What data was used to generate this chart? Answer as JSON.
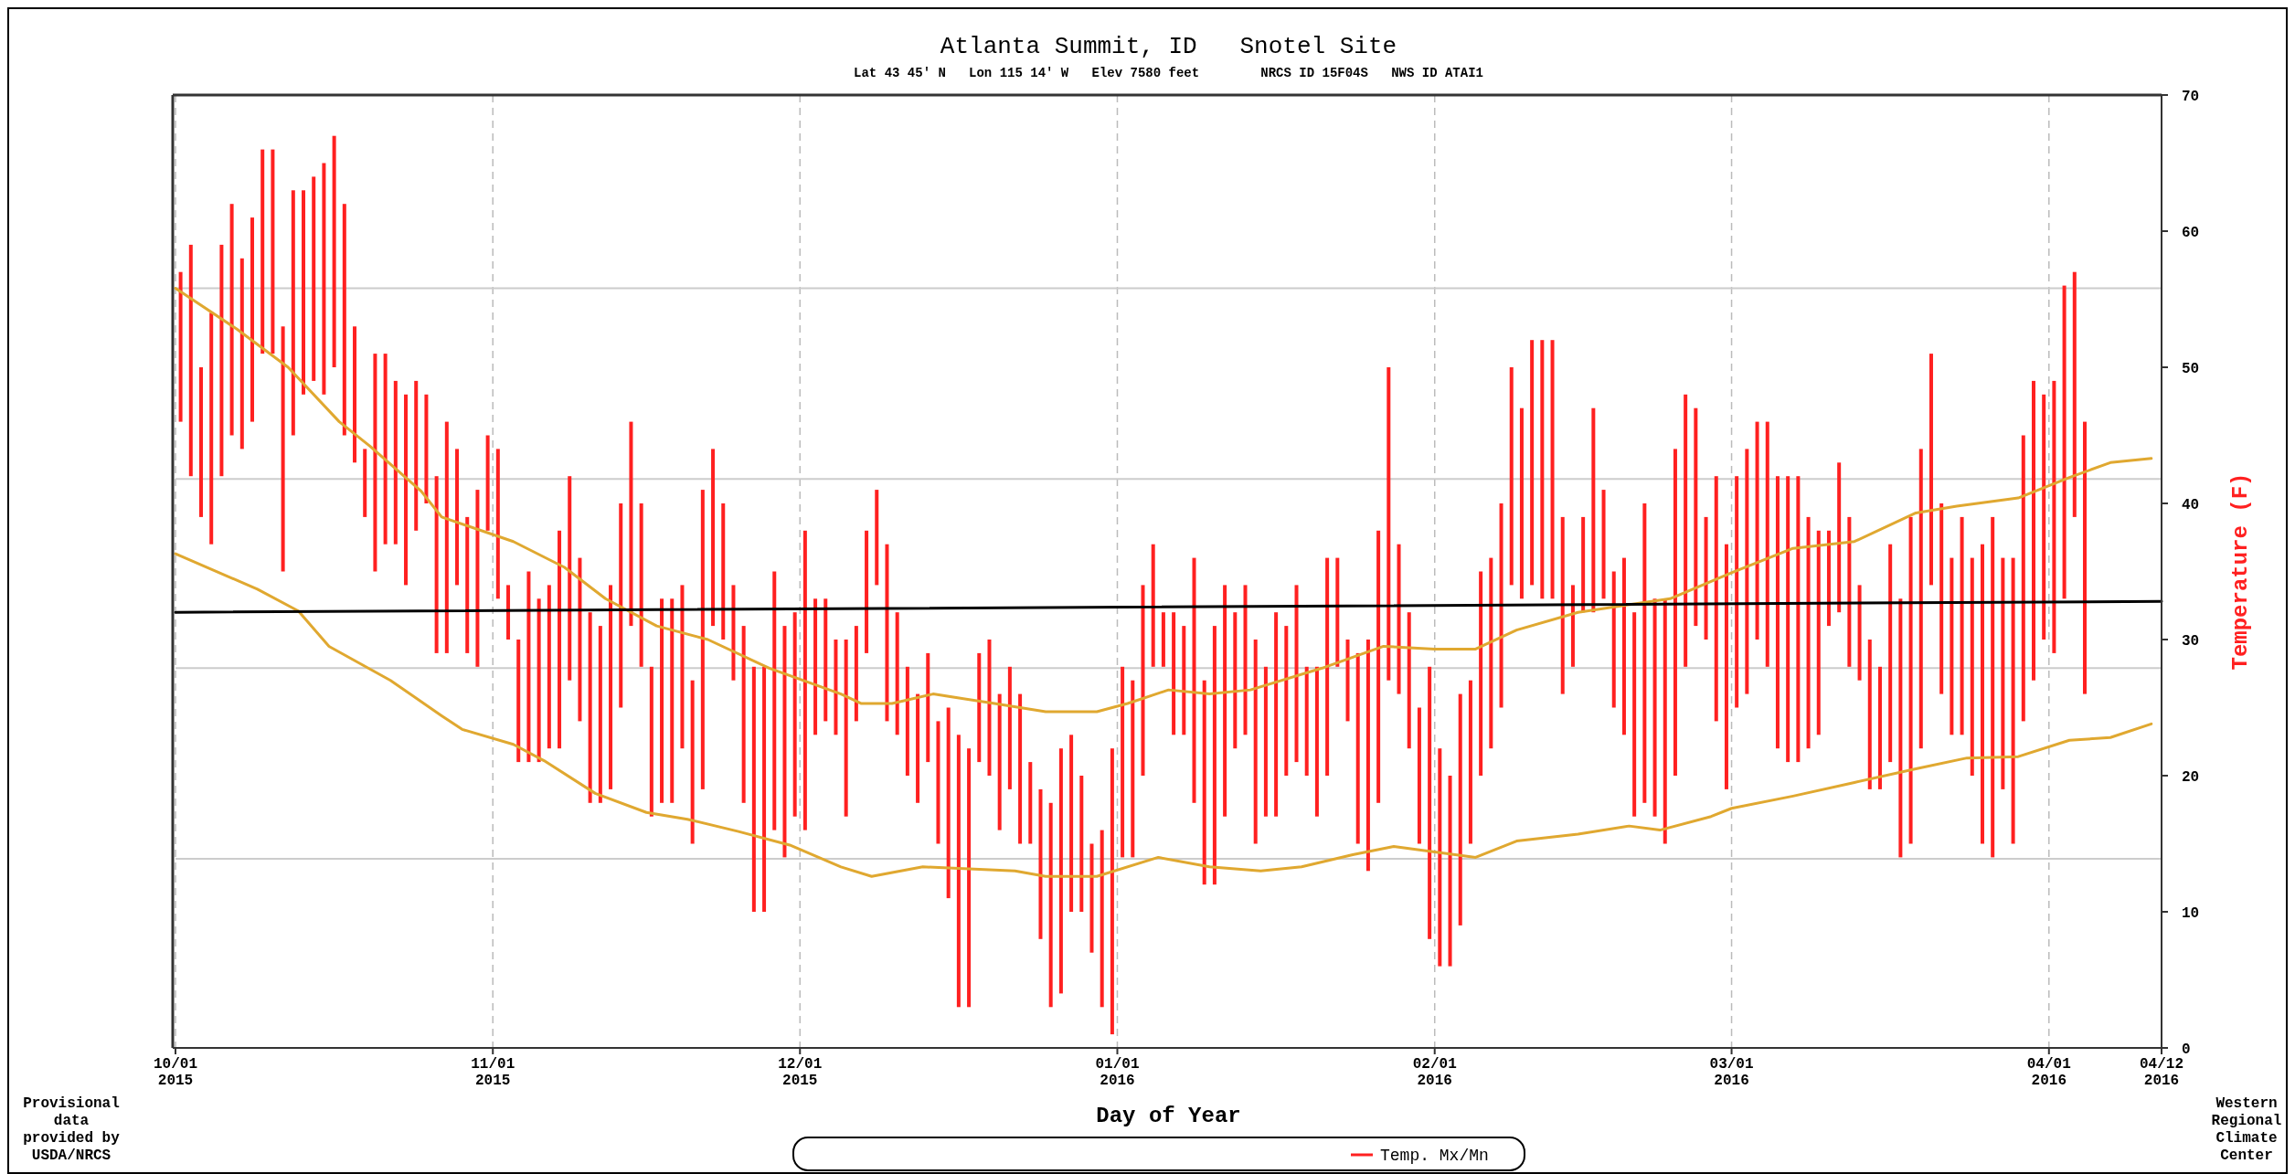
{
  "chart_data": {
    "type": "bar",
    "title": "Atlanta Summit, ID   Snotel Site",
    "subtitle": "Lat 43 45' N   Lon 115 14' W   Elev 7580 feet        NRCS ID 15F04S   NWS ID ATAI1",
    "xlabel": "Day of Year",
    "ylabel": "Temperature (F)",
    "annotations": [
      "Provisional\ndata\nprovided by\nUSDA/NRCS",
      "Western\nRegional\nClimate\nCenter"
    ],
    "xlim": [
      "2015-10-01",
      "2016-04-12"
    ],
    "xticks": [
      {
        "value": "2015-10-01",
        "label": "10/01\n2015"
      },
      {
        "value": "2015-11-01",
        "label": "11/01\n2015"
      },
      {
        "value": "2015-12-01",
        "label": "12/01\n2015"
      },
      {
        "value": "2016-01-01",
        "label": "01/01\n2016"
      },
      {
        "value": "2016-02-01",
        "label": "02/01\n2016"
      },
      {
        "value": "2016-03-01",
        "label": "03/01\n2016"
      },
      {
        "value": "2016-04-01",
        "label": "04/01\n2016"
      },
      {
        "value": "2016-04-12",
        "label": "04/12\n2016"
      }
    ],
    "ylim": [
      0,
      70
    ],
    "yticks": [
      0,
      10,
      20,
      30,
      40,
      50,
      60,
      70
    ],
    "grid": "x",
    "legend": "bottom",
    "ref_lines": [
      {
        "axis": "y",
        "value": 13.9,
        "color": "#cccccc"
      },
      {
        "axis": "y",
        "value": 27.9,
        "color": "#cccccc"
      },
      {
        "axis": "y",
        "value": 41.8,
        "color": "#cccccc"
      },
      {
        "axis": "y",
        "value": 55.8,
        "color": "#cccccc"
      }
    ],
    "series": [
      {
        "name": "Temp. Mx/Mn",
        "color": "#ff2020",
        "x": [
          "2015-10-01",
          "2015-10-02",
          "2015-10-03",
          "2015-10-04",
          "2015-10-05",
          "2015-10-06",
          "2015-10-07",
          "2015-10-08",
          "2015-10-09",
          "2015-10-10",
          "2015-10-11",
          "2015-10-12",
          "2015-10-13",
          "2015-10-14",
          "2015-10-15",
          "2015-10-16",
          "2015-10-17",
          "2015-10-18",
          "2015-10-19",
          "2015-10-20",
          "2015-10-21",
          "2015-10-22",
          "2015-10-23",
          "2015-10-24",
          "2015-10-25",
          "2015-10-26",
          "2015-10-27",
          "2015-10-28",
          "2015-10-29",
          "2015-10-30",
          "2015-10-31",
          "2015-11-01",
          "2015-11-02",
          "2015-11-03",
          "2015-11-04",
          "2015-11-05",
          "2015-11-06",
          "2015-11-07",
          "2015-11-08",
          "2015-11-09",
          "2015-11-10",
          "2015-11-11",
          "2015-11-12",
          "2015-11-13",
          "2015-11-14",
          "2015-11-15",
          "2015-11-16",
          "2015-11-17",
          "2015-11-18",
          "2015-11-19",
          "2015-11-20",
          "2015-11-21",
          "2015-11-22",
          "2015-11-23",
          "2015-11-24",
          "2015-11-25",
          "2015-11-26",
          "2015-11-27",
          "2015-11-28",
          "2015-11-29",
          "2015-11-30",
          "2015-12-01",
          "2015-12-02",
          "2015-12-03",
          "2015-12-04",
          "2015-12-05",
          "2015-12-06",
          "2015-12-07",
          "2015-12-08",
          "2015-12-09",
          "2015-12-10",
          "2015-12-11",
          "2015-12-12",
          "2015-12-13",
          "2015-12-14",
          "2015-12-15",
          "2015-12-16",
          "2015-12-17",
          "2015-12-18",
          "2015-12-19",
          "2015-12-20",
          "2015-12-21",
          "2015-12-22",
          "2015-12-23",
          "2015-12-24",
          "2015-12-25",
          "2015-12-26",
          "2015-12-27",
          "2015-12-28",
          "2015-12-29",
          "2015-12-30",
          "2015-12-31",
          "2016-01-01",
          "2016-01-02",
          "2016-01-03",
          "2016-01-04",
          "2016-01-05",
          "2016-01-06",
          "2016-01-07",
          "2016-01-08",
          "2016-01-09",
          "2016-01-10",
          "2016-01-11",
          "2016-01-12",
          "2016-01-13",
          "2016-01-14",
          "2016-01-15",
          "2016-01-16",
          "2016-01-17",
          "2016-01-18",
          "2016-01-19",
          "2016-01-20",
          "2016-01-21",
          "2016-01-22",
          "2016-01-23",
          "2016-01-24",
          "2016-01-25",
          "2016-01-26",
          "2016-01-27",
          "2016-01-28",
          "2016-01-29",
          "2016-01-30",
          "2016-01-31",
          "2016-02-01",
          "2016-02-02",
          "2016-02-03",
          "2016-02-04",
          "2016-02-05",
          "2016-02-06",
          "2016-02-07",
          "2016-02-08",
          "2016-02-09",
          "2016-02-10",
          "2016-02-11",
          "2016-02-12",
          "2016-02-13",
          "2016-02-14",
          "2016-02-15",
          "2016-02-16",
          "2016-02-17",
          "2016-02-18",
          "2016-02-19",
          "2016-02-20",
          "2016-02-21",
          "2016-02-22",
          "2016-02-23",
          "2016-02-24",
          "2016-02-25",
          "2016-02-26",
          "2016-02-27",
          "2016-02-28",
          "2016-02-29",
          "2016-03-01",
          "2016-03-02",
          "2016-03-03",
          "2016-03-04",
          "2016-03-05",
          "2016-03-06",
          "2016-03-07",
          "2016-03-08",
          "2016-03-09",
          "2016-03-10",
          "2016-03-11",
          "2016-03-12",
          "2016-03-13",
          "2016-03-14",
          "2016-03-15",
          "2016-03-16",
          "2016-03-17",
          "2016-03-18",
          "2016-03-19",
          "2016-03-20",
          "2016-03-21",
          "2016-03-22",
          "2016-03-23",
          "2016-03-24",
          "2016-03-25",
          "2016-03-26",
          "2016-03-27",
          "2016-03-28",
          "2016-03-29",
          "2016-03-30",
          "2016-03-31",
          "2016-04-01",
          "2016-04-02",
          "2016-04-03",
          "2016-04-04"
        ],
        "values": [
          11,
          17,
          11,
          17,
          17,
          17,
          14,
          15,
          15,
          15,
          18,
          18,
          15,
          15,
          17,
          17,
          17,
          10,
          5,
          16,
          14,
          12,
          14,
          11,
          8,
          13,
          17,
          10,
          10,
          13,
          7,
          11,
          4,
          9,
          14,
          12,
          12,
          16,
          15,
          12,
          14,
          13,
          15,
          15,
          15,
          12,
          11,
          15,
          15,
          12,
          12,
          22,
          13,
          10,
          7,
          13,
          18,
          18,
          19,
          17,
          15,
          22,
          10,
          9,
          7,
          13,
          7,
          9,
          7,
          13,
          9,
          8,
          8,
          8,
          9,
          14,
          20,
          19,
          8,
          10,
          10,
          9,
          11,
          6,
          11,
          15,
          18,
          13,
          10,
          8,
          13,
          21,
          14,
          13,
          14,
          9,
          4,
          9,
          8,
          18,
          15,
          19,
          17,
          10,
          11,
          15,
          11,
          15,
          11,
          13,
          8,
          11,
          16,
          8,
          6,
          14,
          17,
          20,
          23,
          11,
          10,
          10,
          20,
          16,
          14,
          17,
          12,
          15,
          14,
          15,
          16,
          14,
          18,
          19,
          19,
          13,
          6,
          7,
          15,
          8,
          10,
          13,
          15,
          22,
          16,
          18,
          24,
          20,
          16,
          9,
          18,
          18,
          17,
          18,
          16,
          18,
          20,
          21,
          21,
          17,
          15,
          7,
          11,
          11,
          7,
          11,
          9,
          16,
          19,
          24,
          22,
          17,
          14,
          13,
          16,
          16,
          22,
          25,
          17,
          21,
          21,
          22,
          18,
          20,
          23,
          18,
          20
        ],
        "base": [
          46,
          42,
          39,
          37,
          42,
          45,
          44,
          46,
          51,
          51,
          35,
          45,
          48,
          49,
          48,
          50,
          45,
          43,
          39,
          35,
          37,
          37,
          34,
          38,
          40,
          29,
          29,
          34,
          29,
          28,
          38,
          33,
          30,
          21,
          21,
          21,
          22,
          22,
          27,
          24,
          18,
          18,
          19,
          25,
          31,
          28,
          17,
          18,
          18,
          22,
          15,
          19,
          31,
          30,
          27,
          18,
          10,
          10,
          16,
          14,
          17,
          16,
          23,
          24,
          23,
          17,
          24,
          29,
          34,
          24,
          23,
          20,
          18,
          21,
          15,
          11,
          3,
          3,
          21,
          20,
          16,
          19,
          15,
          15,
          8,
          3,
          4,
          10,
          10,
          7,
          3,
          1,
          14,
          14,
          20,
          28,
          28,
          23,
          23,
          18,
          12,
          12,
          17,
          22,
          23,
          15,
          17,
          17,
          20,
          21,
          20,
          17,
          20,
          28,
          24,
          15,
          13,
          18,
          27,
          26,
          22,
          15,
          8,
          6,
          6,
          9,
          15,
          20,
          22,
          25,
          34,
          33,
          34,
          33,
          33,
          26,
          28,
          32,
          32,
          33,
          25,
          23,
          17,
          18,
          17,
          15,
          20,
          28,
          31,
          30,
          24,
          19,
          25,
          26,
          30,
          28,
          22,
          21,
          21,
          22,
          23,
          31,
          32,
          28,
          27,
          19,
          19,
          21,
          14,
          15,
          22,
          34,
          26,
          23,
          23,
          20,
          15,
          14,
          19,
          15,
          24,
          27,
          30,
          29,
          33,
          39,
          26
        ]
      },
      {
        "type": "line",
        "color": "#e0a830",
        "x": [
          "2015-10-01",
          "2015-10-07",
          "2015-10-12",
          "2015-10-17",
          "2015-10-20",
          "2015-10-25",
          "2015-10-27",
          "2015-11-03",
          "2015-11-08",
          "2015-11-12",
          "2015-11-17",
          "2015-11-22",
          "2015-11-28",
          "2015-12-05",
          "2015-12-07",
          "2015-12-10",
          "2015-12-14",
          "2015-12-20",
          "2015-12-25",
          "2015-12-30",
          "2016-01-02",
          "2016-01-06",
          "2016-01-10",
          "2016-01-14",
          "2016-01-21",
          "2016-01-27",
          "2016-02-01",
          "2016-02-05",
          "2016-02-09",
          "2016-02-15",
          "2016-02-24",
          "2016-03-01",
          "2016-03-07",
          "2016-03-13",
          "2016-03-19",
          "2016-03-23",
          "2016-03-29",
          "2016-04-03",
          "2016-04-07",
          "2016-04-11"
        ],
        "values": [
          55.8,
          52.8,
          50,
          46,
          44.2,
          40.9,
          39,
          37.2,
          35.3,
          33,
          31,
          30,
          27.9,
          26,
          25.3,
          25.3,
          26,
          25.3,
          24.7,
          24.7,
          25.3,
          26.3,
          26,
          26.3,
          27.9,
          29.5,
          29.3,
          29.3,
          30.7,
          32,
          33,
          34.9,
          36.7,
          37.2,
          39.3,
          39.8,
          40.4,
          41.9,
          43,
          43.3
        ]
      },
      {
        "type": "line",
        "color": "#e0a830",
        "x": [
          "2015-10-01",
          "2015-10-09",
          "2015-10-13",
          "2015-10-16",
          "2015-10-22",
          "2015-10-27",
          "2015-10-29",
          "2015-11-03",
          "2015-11-06",
          "2015-11-11",
          "2015-11-16",
          "2015-11-20",
          "2015-11-25",
          "2015-11-30",
          "2015-12-05",
          "2015-12-08",
          "2015-12-13",
          "2015-12-22",
          "2015-12-25",
          "2015-12-30",
          "2016-01-05",
          "2016-01-10",
          "2016-01-15",
          "2016-01-19",
          "2016-01-24",
          "2016-01-28",
          "2016-02-01",
          "2016-02-05",
          "2016-02-09",
          "2016-02-15",
          "2016-02-20",
          "2016-02-23",
          "2016-02-28",
          "2016-03-01",
          "2016-03-07",
          "2016-03-13",
          "2016-03-19",
          "2016-03-24",
          "2016-03-29",
          "2016-04-03",
          "2016-04-07",
          "2016-04-11"
        ],
        "values": [
          36.3,
          33.7,
          32.1,
          29.5,
          27,
          24.4,
          23.4,
          22.3,
          21.1,
          18.7,
          17.3,
          16.8,
          15.9,
          14.9,
          13.3,
          12.6,
          13.3,
          13,
          12.6,
          12.6,
          14,
          13.3,
          13,
          13.3,
          14.2,
          14.8,
          14.4,
          14,
          15.2,
          15.7,
          16.3,
          16,
          17,
          17.6,
          18.5,
          19.5,
          20.5,
          21.3,
          21.4,
          22.6,
          22.8,
          23.8
        ]
      },
      {
        "type": "line",
        "color": "#000000",
        "x": [
          "2015-10-01",
          "2016-04-12"
        ],
        "values": [
          32,
          32.8
        ]
      }
    ]
  }
}
